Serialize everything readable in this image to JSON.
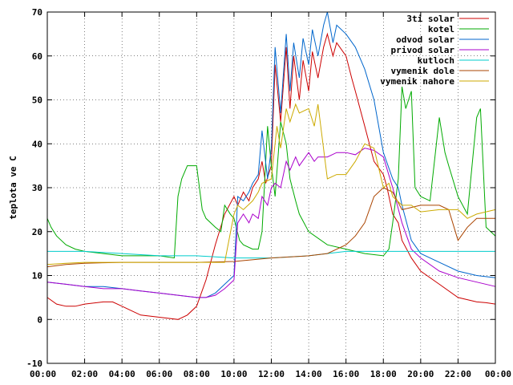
{
  "chart_data": {
    "type": "line",
    "title": "",
    "xlabel": "",
    "ylabel": "teplota ve C",
    "xlim": [
      0,
      24
    ],
    "ylim": [
      -10,
      70
    ],
    "grid": true,
    "legend_placement": "top-right",
    "x_ticks": [
      "00:00",
      "02:00",
      "04:00",
      "06:00",
      "08:00",
      "10:00",
      "12:00",
      "14:00",
      "16:00",
      "18:00",
      "20:00",
      "22:00",
      "00:00"
    ],
    "x_tick_values": [
      0,
      2,
      4,
      6,
      8,
      10,
      12,
      14,
      16,
      18,
      20,
      22,
      24
    ],
    "y_ticks": [
      "-10",
      "0",
      "10",
      "20",
      "30",
      "40",
      "50",
      "60",
      "70"
    ],
    "y_tick_values": [
      -10,
      0,
      10,
      20,
      30,
      40,
      50,
      60,
      70
    ],
    "series": [
      {
        "name": "3ti solar",
        "color": "#cc0000",
        "x": [
          0,
          0.5,
          1,
          1.5,
          2,
          3,
          3.5,
          4,
          4.5,
          5,
          6,
          7,
          7.5,
          8,
          8.5,
          9,
          9.5,
          10,
          10.2,
          10.5,
          10.8,
          11,
          11.3,
          11.5,
          11.7,
          12,
          12.2,
          12.5,
          12.8,
          13,
          13.2,
          13.5,
          13.7,
          14,
          14.2,
          14.5,
          14.8,
          15,
          15.3,
          15.5,
          16,
          16.3,
          16.5,
          17,
          17.5,
          18,
          18.2,
          18.5,
          18.8,
          19,
          19.5,
          20,
          21,
          22,
          23,
          23.5,
          24
        ],
        "y": [
          5,
          3.5,
          3,
          3,
          3.5,
          4,
          4,
          3,
          2,
          1,
          0.5,
          0,
          1,
          3,
          9,
          17,
          24,
          28,
          26,
          29,
          27,
          30,
          32,
          36,
          31,
          35,
          58,
          45,
          62,
          48,
          60,
          50,
          59,
          52,
          61,
          55,
          62,
          65,
          60,
          63,
          60,
          55,
          52,
          44,
          36,
          33,
          30,
          24,
          22,
          18,
          14,
          11,
          8,
          5,
          4,
          3.8,
          3.5
        ]
      },
      {
        "name": "kotel",
        "color": "#00aa00",
        "x": [
          0,
          0.2,
          0.5,
          1,
          1.5,
          2,
          3,
          4,
          5,
          6,
          6.8,
          7,
          7.2,
          7.5,
          8,
          8.3,
          8.5,
          9,
          9.3,
          9.5,
          9.8,
          10,
          10.3,
          10.5,
          11,
          11.3,
          11.5,
          11.8,
          12,
          12.2,
          12.5,
          12.8,
          13,
          13.3,
          13.5,
          14,
          15,
          16,
          17,
          18,
          18.3,
          18.5,
          18.8,
          19,
          19.2,
          19.5,
          19.7,
          20,
          20.5,
          21,
          21.3,
          21.5,
          22,
          22.5,
          23,
          23.2,
          23.5,
          24
        ],
        "y": [
          23,
          21,
          19,
          17,
          16,
          15.5,
          15,
          14.5,
          14.5,
          14.5,
          14,
          28,
          32,
          35,
          35,
          25,
          23,
          21,
          20,
          26,
          24,
          23,
          18,
          17,
          16,
          16,
          20,
          44,
          35,
          28,
          45,
          40,
          32,
          27,
          24,
          20,
          17,
          16,
          15,
          14.5,
          16,
          22,
          32,
          53,
          48,
          52,
          30,
          28,
          27,
          46,
          38,
          35,
          28,
          24,
          46,
          48,
          21,
          19
        ]
      },
      {
        "name": "odvod solar",
        "color": "#0066cc",
        "x": [
          0,
          1,
          2,
          3,
          4,
          5,
          6,
          7,
          8,
          8.5,
          9,
          9.5,
          10,
          10.2,
          10.5,
          10.8,
          11,
          11.3,
          11.5,
          11.8,
          12,
          12.2,
          12.5,
          12.8,
          13,
          13.2,
          13.5,
          13.7,
          14,
          14.2,
          14.5,
          14.8,
          15,
          15.3,
          15.5,
          16,
          16.5,
          17,
          17.5,
          18,
          18.5,
          18.8,
          19,
          19.5,
          20,
          21,
          22,
          23,
          24
        ],
        "y": [
          8.5,
          8,
          7.5,
          7.5,
          7,
          6.5,
          6,
          5.5,
          5,
          5,
          6,
          8,
          10,
          28,
          27,
          29,
          31,
          33,
          43,
          32,
          39,
          62,
          47,
          65,
          52,
          63,
          55,
          64,
          58,
          66,
          60,
          67,
          70,
          63,
          67,
          65,
          62,
          57,
          50,
          38,
          32,
          30,
          26,
          18,
          15,
          13,
          11,
          10,
          9.5
        ]
      },
      {
        "name": "privod solar",
        "color": "#aa00cc",
        "x": [
          0,
          1,
          2,
          3,
          4,
          5,
          6,
          7,
          8,
          8.5,
          9,
          9.5,
          10,
          10.2,
          10.5,
          10.8,
          11,
          11.3,
          11.5,
          11.8,
          12,
          12.2,
          12.5,
          12.8,
          13,
          13.3,
          13.5,
          14,
          14.3,
          14.5,
          15,
          15.5,
          16,
          16.5,
          17,
          17.5,
          18,
          18.5,
          19,
          19.5,
          20,
          21,
          22,
          23,
          24
        ],
        "y": [
          8.5,
          8,
          7.5,
          7,
          7,
          6.5,
          6,
          5.5,
          5,
          5,
          5.5,
          7,
          9,
          22,
          24,
          22,
          24,
          23,
          28,
          26,
          30,
          31,
          30,
          36,
          34,
          37,
          35,
          38,
          36,
          37,
          37,
          38,
          38,
          37.5,
          39,
          38.5,
          37,
          30,
          22,
          16,
          14,
          11,
          9.5,
          8.5,
          7.5
        ]
      },
      {
        "name": "kutloch",
        "color": "#00cccc",
        "x": [
          0,
          2,
          4,
          6,
          8,
          10,
          12,
          14,
          16,
          18,
          20,
          22,
          24
        ],
        "y": [
          15.5,
          15.5,
          15,
          14.5,
          14.5,
          14,
          14,
          14.5,
          15.5,
          15.5,
          15.5,
          15.5,
          15.5
        ]
      },
      {
        "name": "vymenik dole",
        "color": "#aa4400",
        "x": [
          0,
          1,
          2,
          3,
          4,
          6,
          8,
          10,
          12,
          14,
          15,
          16,
          16.5,
          17,
          17.5,
          18,
          18.5,
          19,
          19.5,
          20,
          21,
          21.5,
          22,
          22.5,
          23,
          24
        ],
        "y": [
          12,
          12.5,
          12.8,
          12.9,
          13,
          13,
          13,
          13.2,
          14,
          14.5,
          15,
          17,
          19,
          22,
          28,
          30,
          29,
          25,
          25.5,
          26,
          26,
          25,
          18,
          21,
          23,
          23
        ]
      },
      {
        "name": "vymenik nahore",
        "color": "#ccaa00",
        "x": [
          0,
          1,
          2,
          3,
          4,
          6,
          8,
          9.5,
          10,
          10.2,
          10.5,
          11,
          11.3,
          11.5,
          12,
          12.3,
          12.5,
          12.8,
          13,
          13.3,
          13.5,
          14,
          14.3,
          14.5,
          15,
          15.5,
          16,
          16.5,
          17,
          17.5,
          18,
          18.3,
          18.5,
          19,
          19.5,
          20,
          21,
          22,
          22.5,
          23,
          24
        ],
        "y": [
          12.5,
          12.8,
          13,
          13,
          13,
          13,
          13,
          13,
          24,
          26,
          25,
          27,
          29,
          31,
          32,
          44,
          39,
          48,
          45,
          49,
          47,
          48,
          44,
          49,
          32,
          33,
          33,
          36,
          40,
          39,
          30,
          31,
          28,
          26,
          26,
          24.5,
          25,
          25,
          23,
          24,
          25
        ]
      }
    ]
  }
}
